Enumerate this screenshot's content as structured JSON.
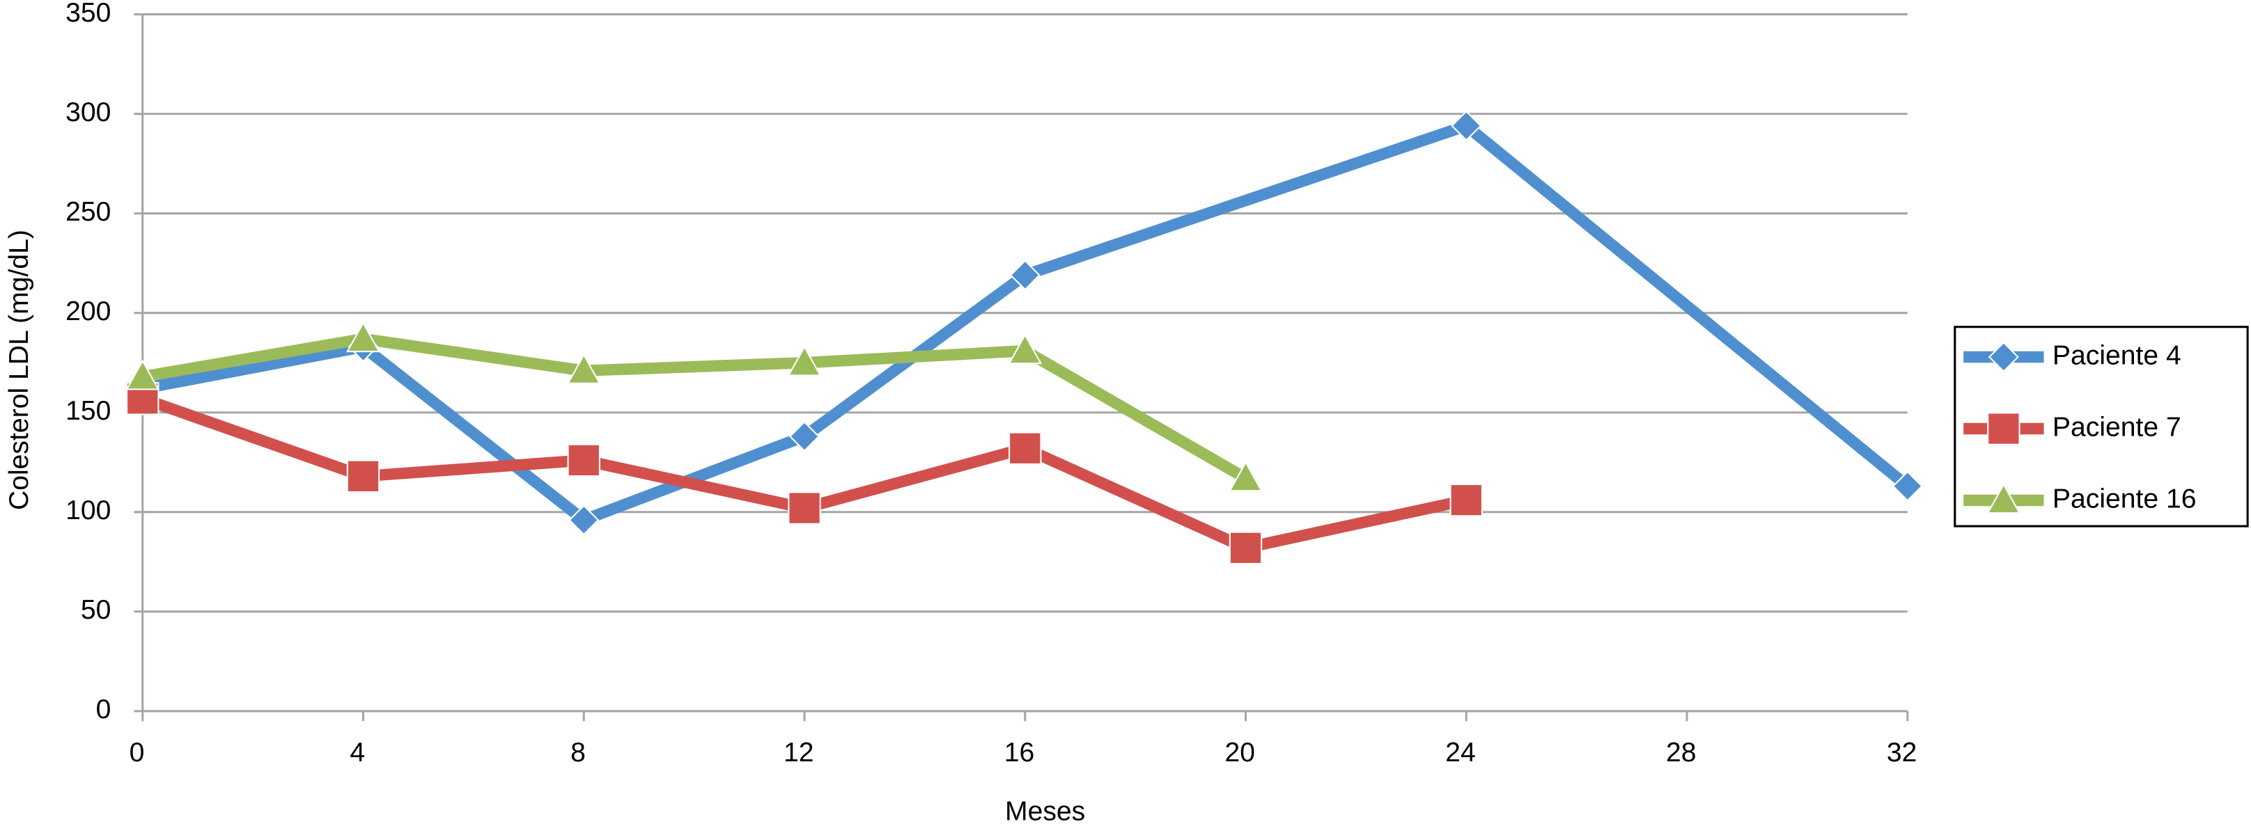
{
  "chart_data": {
    "type": "line",
    "xlabel": "Meses",
    "ylabel": "Colesterol LDL (mg/dL)",
    "xlim": [
      0,
      32
    ],
    "xticks": [
      0,
      4,
      8,
      12,
      16,
      20,
      24,
      28,
      32
    ],
    "ylim": [
      0,
      350
    ],
    "yticks": [
      0,
      50,
      100,
      150,
      200,
      250,
      300,
      350
    ],
    "grid": true,
    "legend": "right",
    "series": [
      {
        "name": "Paciente 4",
        "color": "#4f8fd0",
        "marker": "diamond",
        "x": [
          0,
          4,
          8,
          12,
          16,
          24,
          32
        ],
        "values": [
          162,
          183,
          96,
          138,
          219,
          294,
          113
        ]
      },
      {
        "name": "Paciente 7",
        "color": "#d2504c",
        "marker": "square",
        "x": [
          0,
          4,
          8,
          12,
          16,
          20,
          24
        ],
        "values": [
          157,
          118,
          126,
          102,
          132,
          82,
          106
        ]
      },
      {
        "name": "Paciente 16",
        "color": "#9bbb59",
        "marker": "triangle",
        "x": [
          0,
          4,
          8,
          12,
          16,
          20
        ],
        "values": [
          168,
          187,
          171,
          175,
          181,
          117
        ]
      }
    ]
  }
}
